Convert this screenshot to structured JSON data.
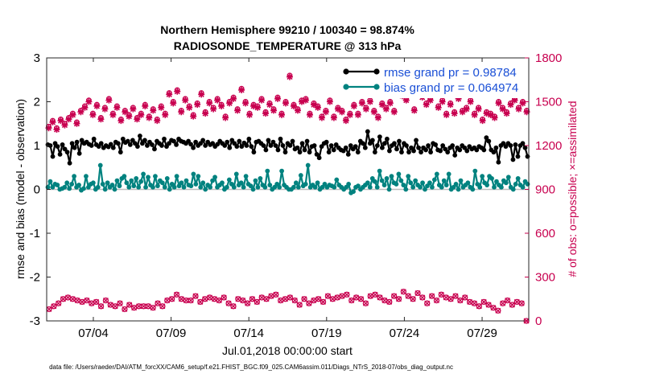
{
  "chart_data": {
    "type": "line",
    "title": "Northern Hemisphere 99210 / 100340 = 98.874%",
    "subtitle": "RADIOSONDE_TEMPERATURE @ 313 hPa",
    "xlabel": "Jul.01,2018 00:00:00 start",
    "ylabel": "rmse and bias (model - observation)",
    "ylabel_right": "# of obs: o=possible; ×=assimilated",
    "x_ticks": [
      "07/04",
      "07/09",
      "07/14",
      "07/19",
      "07/24",
      "07/29"
    ],
    "x_tick_days": [
      4,
      9,
      14,
      19,
      24,
      29
    ],
    "xlim_days": [
      1,
      32
    ],
    "ylim": [
      -3,
      3
    ],
    "y_ticks": [
      "3",
      "2",
      "1",
      "0",
      "-1",
      "-2",
      "-3"
    ],
    "y_tick_values": [
      3,
      2,
      1,
      0,
      -1,
      -2,
      -3
    ],
    "ylim_right": [
      0,
      1800
    ],
    "y_ticks_right": [
      "1800",
      "1500",
      "1200",
      "900",
      "600",
      "300",
      "0"
    ],
    "y_tick_values_right": [
      1800,
      1500,
      1200,
      900,
      600,
      300,
      0
    ],
    "points_per_day": 4,
    "legend_position": "top-right",
    "series": [
      {
        "name": "rmse grand pr = 0.98784",
        "color": "#000000",
        "axis": "left",
        "values": [
          1.02,
          1.0,
          0.75,
          1.05,
          0.98,
          0.8,
          1.02,
          0.92,
          0.85,
          0.6,
          1.05,
          0.95,
          1.08,
          0.82,
          1.12,
          1.05,
          1.08,
          1.03,
          1.0,
          1.15,
          1.02,
          0.98,
          1.05,
          0.95,
          1.0,
          0.97,
          1.03,
          0.95,
          1.08,
          1.05,
          0.85,
          1.15,
          1.07,
          1.1,
          1.02,
          1.12,
          1.05,
          0.98,
          1.22,
          1.05,
          1.12,
          1.0,
          1.08,
          1.02,
          0.92,
          1.1,
          1.05,
          1.0,
          1.15,
          0.98,
          1.05,
          1.12,
          1.1,
          1.02,
          1.15,
          1.1,
          1.08,
          1.05,
          1.1,
          1.03,
          0.95,
          1.08,
          1.0,
          1.05,
          1.12,
          1.0,
          1.08,
          1.02,
          1.05,
          0.98,
          1.03,
          1.1,
          1.05,
          1.0,
          1.08,
          0.95,
          1.12,
          1.05,
          0.98,
          1.1,
          0.98,
          1.06,
          1.0,
          1.15,
          0.98,
          0.85,
          1.08,
          1.1,
          1.05,
          1.0,
          0.9,
          1.12,
          1.0,
          1.08,
          1.0,
          0.9,
          1.15,
          1.0,
          0.85,
          1.05,
          1.0,
          1.1,
          0.92,
          0.95,
          0.85,
          1.05,
          0.9,
          1.1,
          0.85,
          0.98,
          1.0,
          0.8,
          0.72,
          0.98,
          1.05,
          1.08,
          0.85,
          1.0,
          0.9,
          1.02,
          0.95,
          0.9,
          0.88,
          0.95,
          0.8,
          1.0,
          0.92,
          0.98,
          0.85,
          1.1,
          1.05,
          0.95,
          1.32,
          1.05,
          1.12,
          0.85,
          1.0,
          1.2,
          0.95,
          1.05,
          1.15,
          0.88,
          1.0,
          1.05,
          0.92,
          1.1,
          0.85,
          1.05,
          1.0,
          0.85,
          0.95,
          0.88,
          1.12,
          0.95,
          0.85,
          0.95,
          0.9,
          1.0,
          0.85,
          1.05,
          1.02,
          0.9,
          0.88,
          1.0,
          0.92,
          0.85,
          0.95,
          1.0,
          0.78,
          0.95,
          0.9,
          1.0,
          0.95,
          0.88,
          0.98,
          0.92,
          0.95,
          0.9,
          0.98,
          0.95,
          0.9,
          1.18,
          1.1,
          0.9,
          0.85,
          0.95,
          0.62,
          1.0,
          1.05,
          0.98,
          1.05,
          1.0,
          0.68,
          1.02,
          0.75,
          1.0,
          1.05,
          0.95,
          0.75
        ]
      },
      {
        "name": "bias grand pr = 0.064974",
        "color": "#00827f",
        "axis": "left",
        "values": [
          0.05,
          0.18,
          0.05,
          0.12,
          0.1,
          0.0,
          0.02,
          0.05,
          0.15,
          0.02,
          0.12,
          0.3,
          0.05,
          0.1,
          -0.02,
          0.02,
          0.3,
          0.05,
          0.12,
          0.15,
          0.0,
          0.05,
          0.55,
          0.12,
          0.0,
          0.15,
          0.05,
          0.1,
          0.0,
          0.2,
          0.08,
          0.25,
          0.3,
          0.15,
          0.05,
          0.2,
          0.08,
          0.25,
          0.05,
          0.18,
          0.35,
          0.05,
          0.28,
          0.1,
          0.05,
          0.3,
          0.08,
          0.2,
          0.15,
          0.05,
          0.25,
          0.0,
          0.12,
          0.05,
          0.3,
          0.08,
          0.15,
          0.05,
          0.2,
          0.1,
          0.08,
          0.35,
          0.12,
          0.3,
          0.05,
          0.15,
          0.0,
          0.1,
          0.05,
          0.2,
          0.28,
          0.05,
          0.1,
          0.15,
          0.0,
          0.05,
          0.22,
          0.12,
          0.05,
          0.35,
          0.1,
          0.15,
          0.05,
          0.3,
          0.12,
          0.08,
          0.0,
          0.2,
          0.05,
          0.25,
          0.1,
          0.05,
          0.42,
          0.1,
          0.0,
          0.05,
          0.12,
          0.05,
          0.42,
          0.1,
          0.05,
          0.0,
          0.0,
          0.05,
          0.15,
          0.05,
          0.32,
          0.08,
          0.12,
          0.55,
          0.05,
          0.1,
          0.05,
          0.15,
          0.0,
          0.05,
          0.12,
          0.05,
          0.1,
          0.08,
          0.05,
          0.22,
          0.1,
          0.05,
          0.0,
          0.05,
          0.12,
          -0.08,
          -0.05,
          0.05,
          0.08,
          0.0,
          0.05,
          0.1,
          0.15,
          0.05,
          0.25,
          0.18,
          0.05,
          0.42,
          0.2,
          0.1,
          0.25,
          0.0,
          0.3,
          0.15,
          0.12,
          0.35,
          0.2,
          0.1,
          0.0,
          0.3,
          0.15,
          0.05,
          0.2,
          0.1,
          0.05,
          0.15,
          0.0,
          0.08,
          0.15,
          0.05,
          0.22,
          0.35,
          0.1,
          0.05,
          0.2,
          0.1,
          0.35,
          0.0,
          0.05,
          0.12,
          0.0,
          0.2,
          0.05,
          0.1,
          0.15,
          0.05,
          0.0,
          0.42,
          0.12,
          0.05,
          0.3,
          0.15,
          0.1,
          0.3,
          0.25,
          0.05,
          0.18,
          0.1,
          0.05,
          0.2,
          0.15,
          0.28,
          0.05,
          0.0,
          0.12,
          0.25,
          0.1,
          0.05,
          0.18,
          0.12
        ]
      },
      {
        "name": "# of obs possible (upper)",
        "color": "#c8004f",
        "axis": "right",
        "marker": "o",
        "values": [
          1330,
          1370,
          1320,
          1380,
          1350,
          1390,
          1420,
          1360,
          1440,
          1470,
          1510,
          1420,
          1480,
          1390,
          1460,
          1520,
          1420,
          1470,
          1380,
          1440,
          1410,
          1460,
          1390,
          1420,
          1480,
          1400,
          1450,
          1380,
          1470,
          1420,
          1560,
          1500,
          1580,
          1440,
          1520,
          1470,
          1410,
          1490,
          1560,
          1430,
          1500,
          1460,
          1520,
          1480,
          1400,
          1500,
          1530,
          1450,
          1590,
          1500,
          1420,
          1480,
          1470,
          1520,
          1430,
          1490,
          1450,
          1530,
          1420,
          1500,
          1680,
          1480,
          1450,
          1510,
          1520,
          1420,
          1490,
          1470,
          1400,
          1440,
          1510,
          1400,
          1460,
          1440,
          1380,
          1420,
          1480,
          1420,
          1500,
          1460,
          1510,
          1440,
          1400,
          1490,
          1460,
          1500,
          1440,
          1590,
          1550,
          1520,
          1580,
          1450,
          1600,
          1540,
          1490,
          1520,
          1560,
          1470,
          1510,
          1420,
          1490,
          1430,
          1530,
          1440,
          1460,
          1510,
          1420,
          1460,
          1380,
          1430,
          1420,
          1400,
          1500,
          1460,
          1430,
          1490,
          1520,
          1460,
          1500,
          1440
        ]
      },
      {
        "name": "# of obs assimilated (upper)",
        "color": "#c8004f",
        "axis": "right",
        "marker": "x",
        "values": [
          1320,
          1360,
          1310,
          1370,
          1340,
          1380,
          1410,
          1350,
          1430,
          1460,
          1500,
          1410,
          1470,
          1380,
          1450,
          1510,
          1410,
          1460,
          1370,
          1430,
          1400,
          1450,
          1380,
          1410,
          1470,
          1390,
          1440,
          1370,
          1460,
          1410,
          1550,
          1490,
          1570,
          1430,
          1510,
          1460,
          1400,
          1480,
          1550,
          1420,
          1490,
          1450,
          1510,
          1470,
          1390,
          1490,
          1520,
          1440,
          1580,
          1490,
          1410,
          1470,
          1460,
          1510,
          1420,
          1480,
          1440,
          1520,
          1410,
          1490,
          1670,
          1470,
          1440,
          1500,
          1510,
          1410,
          1480,
          1460,
          1390,
          1430,
          1500,
          1390,
          1450,
          1430,
          1370,
          1410,
          1470,
          1410,
          1490,
          1450,
          1500,
          1430,
          1390,
          1480,
          1450,
          1490,
          1430,
          1580,
          1540,
          1510,
          1570,
          1440,
          1590,
          1530,
          1480,
          1510,
          1550,
          1460,
          1500,
          1410,
          1480,
          1420,
          1520,
          1430,
          1450,
          1500,
          1410,
          1450,
          1370,
          1420,
          1410,
          1390,
          1490,
          1450,
          1420,
          1480,
          1510,
          1450,
          1490,
          1430
        ]
      },
      {
        "name": "# of obs (lower)",
        "color": "#c8004f",
        "axis": "right",
        "marker": "o",
        "values": [
          80,
          100,
          120,
          150,
          160,
          150,
          140,
          130,
          140,
          120,
          130,
          100,
          140,
          110,
          100,
          120,
          80,
          110,
          90,
          100,
          100,
          100,
          90,
          120,
          100,
          140,
          150,
          180,
          150,
          140,
          140,
          170,
          130,
          150,
          160,
          150,
          140,
          160,
          120,
          100,
          150,
          140,
          120,
          150,
          130,
          160,
          150,
          170,
          180,
          140,
          150,
          160,
          140,
          110,
          150,
          120,
          140,
          150,
          130,
          170,
          150,
          160,
          170,
          180,
          140,
          160,
          150,
          120,
          170,
          180,
          160,
          140,
          130,
          170,
          150,
          200,
          170,
          150,
          190,
          160,
          120,
          170,
          140,
          180,
          160,
          150,
          170,
          140,
          160,
          130,
          120,
          100,
          130,
          110,
          90,
          70,
          120,
          140,
          110,
          130,
          120,
          0
        ]
      }
    ]
  },
  "footnote": "data file: /Users/raeder/DAI/ATM_forcXX/CAM6_setup/f.e21.FHIST_BGC.f09_025.CAM6assim.011/Diags_NTrS_2018-07/obs_diag_output.nc"
}
